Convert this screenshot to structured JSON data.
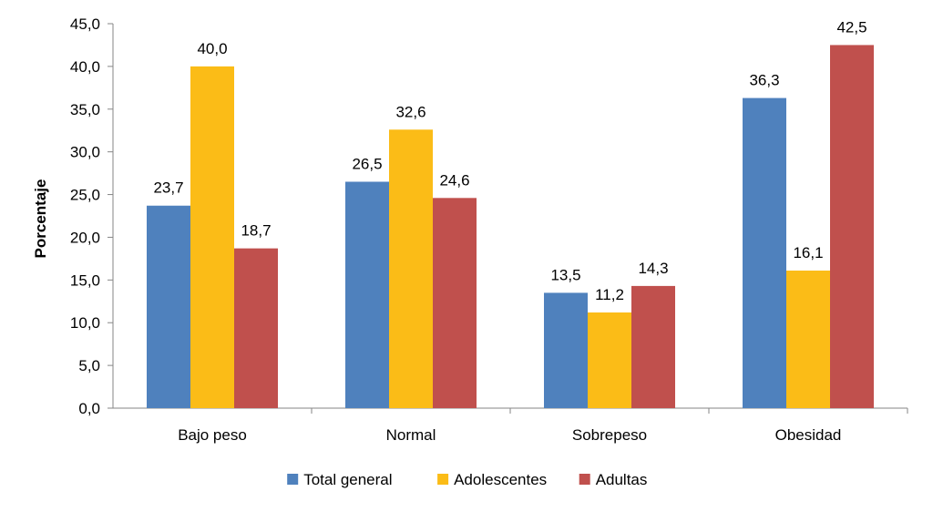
{
  "chart_data": {
    "type": "bar",
    "title": "",
    "xlabel": "",
    "ylabel": "Porcentaje",
    "ylim": [
      0,
      45
    ],
    "yticks": [
      "0,0",
      "5,0",
      "10,0",
      "15,0",
      "20,0",
      "25,0",
      "30,0",
      "35,0",
      "40,0",
      "45,0"
    ],
    "ytick_values": [
      0,
      5,
      10,
      15,
      20,
      25,
      30,
      35,
      40,
      45
    ],
    "categories": [
      "Bajo peso",
      "Normal",
      "Sobrepeso",
      "Obesidad"
    ],
    "series": [
      {
        "name": "Total general",
        "color": "#4F81BD",
        "values": [
          23.7,
          26.5,
          13.5,
          36.3
        ],
        "labels": [
          "23,7",
          "26,5",
          "13,5",
          "36,3"
        ]
      },
      {
        "name": "Adolescentes",
        "color": "#FBBC17",
        "values": [
          40.0,
          32.6,
          11.2,
          16.1
        ],
        "labels": [
          "40,0",
          "32,6",
          "11,2",
          "16,1"
        ]
      },
      {
        "name": "Adultas",
        "color": "#C0504D",
        "values": [
          18.7,
          24.6,
          14.3,
          42.5
        ],
        "labels": [
          "18,7",
          "24,6",
          "14,3",
          "42,5"
        ]
      }
    ],
    "grid": false,
    "legend_position": "bottom"
  }
}
